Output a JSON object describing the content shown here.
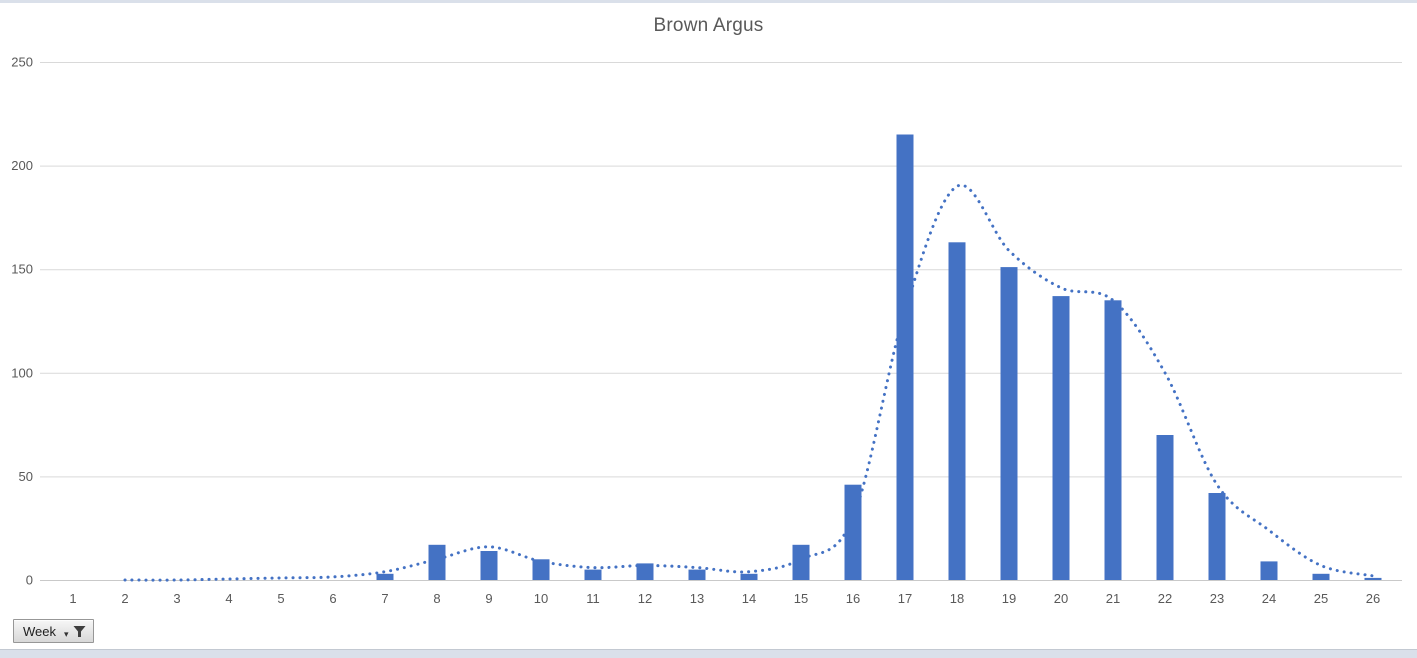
{
  "chart_data": {
    "type": "combo",
    "title": "Brown Argus",
    "categories": [
      1,
      2,
      3,
      4,
      5,
      6,
      7,
      8,
      9,
      10,
      11,
      12,
      13,
      14,
      15,
      16,
      17,
      18,
      19,
      20,
      21,
      22,
      23,
      24,
      25,
      26
    ],
    "ylim": [
      0,
      250
    ],
    "yticks": [
      0,
      50,
      100,
      150,
      200,
      250
    ],
    "grid": true,
    "legend": "none",
    "series": [
      {
        "name": "weekly-count-bars",
        "type": "bar",
        "values": [
          0,
          0,
          0,
          0,
          0,
          0,
          3,
          17,
          14,
          10,
          5,
          8,
          5,
          3,
          17,
          46,
          215,
          163,
          151,
          137,
          135,
          70,
          42,
          9,
          3,
          1
        ]
      },
      {
        "name": "average-dotted-line",
        "type": "line",
        "line_style": "dotted",
        "smooth": true,
        "values": [
          null,
          0,
          0,
          0.5,
          1,
          1.5,
          4,
          10,
          16,
          9,
          6,
          7,
          6,
          4,
          10,
          30,
          130,
          190,
          159,
          141,
          135,
          100,
          46,
          24,
          7,
          2
        ]
      }
    ]
  },
  "field_button": {
    "label": "Week"
  },
  "colors": {
    "series_blue": "#4472C4",
    "title_gray": "#595959",
    "axis_label_gray": "#595959",
    "gridline": "#D9D9D9",
    "axis_line": "#C9C9C9",
    "sheet_edge_strip": "#DAE0EA"
  }
}
